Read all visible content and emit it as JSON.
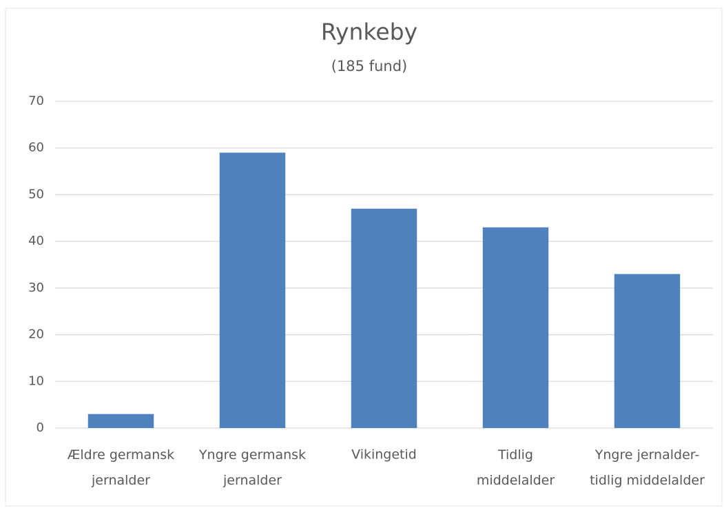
{
  "chart_data": {
    "type": "bar",
    "title": "Rynkeby",
    "subtitle": "(185 fund)",
    "categories": [
      "Ældre germansk\njernalder",
      "Yngre germansk\njernalder",
      "Vikingetid",
      "Tidlig\nmiddelalder",
      "Yngre jernalder-\ntidlig middelalder"
    ],
    "values": [
      3,
      59,
      47,
      43,
      33
    ],
    "color": "#4f81bd",
    "ylim": [
      0,
      70
    ],
    "yticks": [
      0,
      10,
      20,
      30,
      40,
      50,
      60,
      70
    ],
    "grid": true
  }
}
